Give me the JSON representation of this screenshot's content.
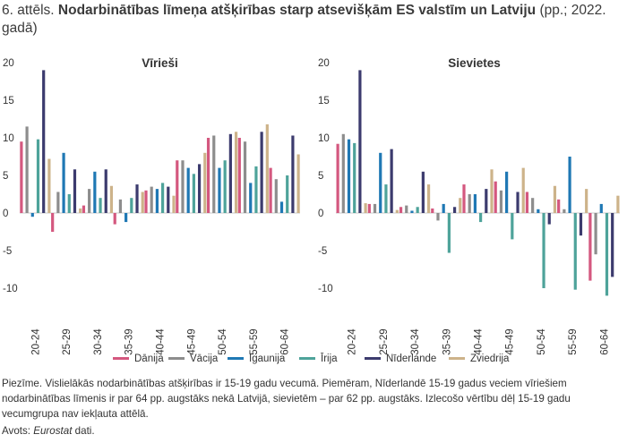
{
  "title": {
    "prefix": "6. attēls.",
    "bold": "Nodarbinātības līmeņa atšķirības starp atsevišķām ES valstīm un Latviju",
    "suffix": "(pp.; 2022. gadā)"
  },
  "note": "Piezīme. Vislielākās nodarbinātības atšķirības ir 15-19 gadu vecumā. Piemēram, Nīderlandē 15-19 gadus veciem vīriešiem nodarbinātības līmenis ir par 64 pp. augstāks nekā Latvijā, sievietēm – par 62 pp. augstāks. Izlecošo vērtību dēļ 15-19 gadu vecumgrupa nav iekļauta attēlā.",
  "source": {
    "label": "Avots:",
    "name": "Eurostat",
    "suffix": "dati."
  },
  "colors": {
    "Dānija": "#d4587f",
    "Vācija": "#8d8d8d",
    "Igaunija": "#1f78b4",
    "Īrija": "#4ea39a",
    "Nīderlande": "#3c3b6e",
    "Zviedrija": "#cdb38a"
  },
  "chart_data": [
    {
      "type": "bar",
      "title": "Vīrieši",
      "categories": [
        "20-24",
        "25-29",
        "30-34",
        "35-39",
        "40-44",
        "45-49",
        "50-54",
        "55-59",
        "60-64"
      ],
      "ylim": [
        -10,
        20
      ],
      "yticks": [
        -10,
        -5,
        0,
        5,
        10,
        15,
        20
      ],
      "legend_position": "bottom",
      "series": [
        {
          "name": "Dānija",
          "values": [
            9.5,
            -2.5,
            1.0,
            -1.5,
            3.0,
            7.0,
            10.0,
            10.0,
            6.0
          ]
        },
        {
          "name": "Vācija",
          "values": [
            11.5,
            2.8,
            3.2,
            1.8,
            3.5,
            7.0,
            10.3,
            9.5,
            4.5
          ]
        },
        {
          "name": "Igaunija",
          "values": [
            -0.5,
            8.0,
            5.5,
            -1.2,
            3.2,
            6.0,
            6.0,
            4.0,
            1.5
          ]
        },
        {
          "name": "Īrija",
          "values": [
            9.8,
            2.5,
            2.0,
            2.0,
            4.0,
            5.2,
            7.0,
            6.2,
            5.0
          ]
        },
        {
          "name": "Nīderlande",
          "values": [
            19.0,
            5.8,
            5.8,
            3.8,
            3.5,
            6.5,
            10.5,
            10.8,
            10.3
          ]
        },
        {
          "name": "Zviedrija",
          "values": [
            7.2,
            0.6,
            3.6,
            2.8,
            2.3,
            8.0,
            10.8,
            11.8,
            7.8
          ]
        }
      ]
    },
    {
      "type": "bar",
      "title": "Sievietes",
      "categories": [
        "20-24",
        "25-29",
        "30-34",
        "35-39",
        "40-44",
        "45-49",
        "50-54",
        "55-59",
        "60-64"
      ],
      "ylim": [
        -10,
        20
      ],
      "yticks": [
        -10,
        -5,
        0,
        5,
        10,
        15,
        20
      ],
      "legend_position": "bottom",
      "series": [
        {
          "name": "Dānija",
          "values": [
            9.2,
            1.2,
            0.8,
            0.6,
            3.8,
            4.2,
            2.8,
            1.8,
            -9.0
          ]
        },
        {
          "name": "Vācija",
          "values": [
            10.5,
            1.2,
            1.0,
            -1.0,
            2.5,
            3.0,
            2.0,
            0.5,
            -5.5
          ]
        },
        {
          "name": "Igaunija",
          "values": [
            9.8,
            8.0,
            0.3,
            1.2,
            2.5,
            5.5,
            0.5,
            7.5,
            1.2
          ]
        },
        {
          "name": "Īrija",
          "values": [
            9.3,
            3.8,
            0.8,
            -5.3,
            -1.2,
            -3.5,
            -10.0,
            -10.2,
            -11.0
          ]
        },
        {
          "name": "Nīderlande",
          "values": [
            19.0,
            8.5,
            5.5,
            0.8,
            3.2,
            2.8,
            -1.5,
            -3.0,
            -8.5
          ]
        },
        {
          "name": "Zviedrija",
          "values": [
            1.3,
            0.4,
            3.8,
            2.0,
            5.8,
            6.0,
            3.6,
            3.2,
            2.3
          ]
        }
      ]
    }
  ]
}
